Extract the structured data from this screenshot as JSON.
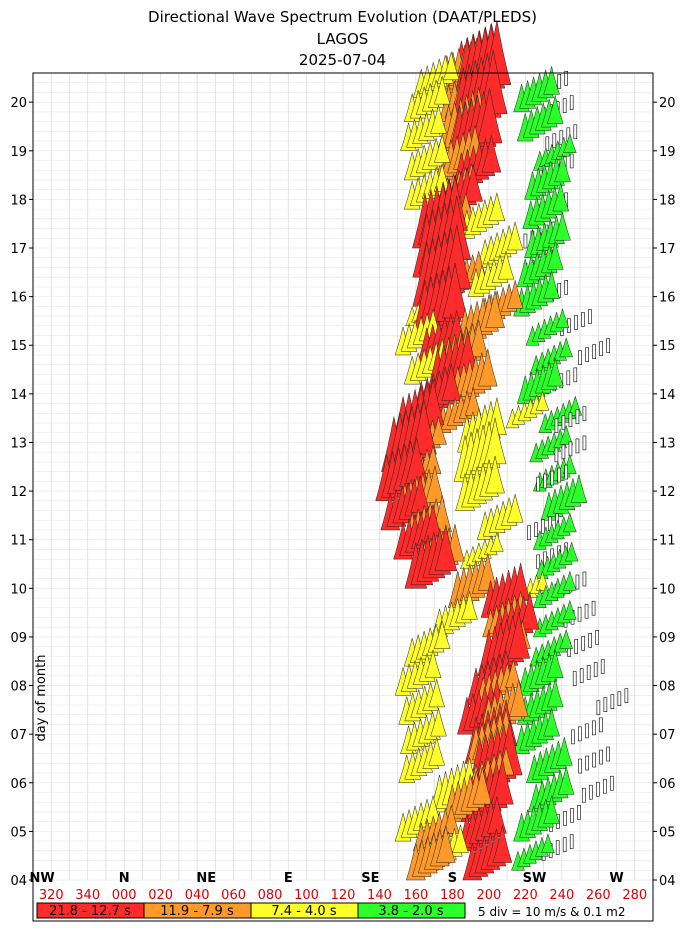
{
  "chart_data": {
    "type": "directional-spectrum-stack",
    "title": "Directional Wave Spectrum Evolution (DAAT/PLEDS)",
    "subtitle_location": "LAGOS",
    "subtitle_date": "2025-07-04",
    "ylabel": "day of month",
    "y_ticks": [
      "04",
      "05",
      "06",
      "07",
      "08",
      "09",
      "10",
      "11",
      "12",
      "13",
      "14",
      "15",
      "16",
      "17",
      "18",
      "19",
      "20"
    ],
    "ylim": [
      4,
      20.6
    ],
    "xlim": [
      310,
      290
    ],
    "direction_ticks": [
      "320",
      "340",
      "000",
      "020",
      "040",
      "060",
      "080",
      "100",
      "120",
      "140",
      "160",
      "180",
      "200",
      "220",
      "240",
      "260",
      "280"
    ],
    "compass_labels": [
      {
        "label": "NW",
        "dir": 315
      },
      {
        "label": "N",
        "dir": 0
      },
      {
        "label": "NE",
        "dir": 45
      },
      {
        "label": "E",
        "dir": 90
      },
      {
        "label": "SE",
        "dir": 135
      },
      {
        "label": "S",
        "dir": 180
      },
      {
        "label": "SW",
        "dir": 225
      },
      {
        "label": "W",
        "dir": 270
      }
    ],
    "legend": [
      {
        "label": "21.8 - 12.7 s",
        "color": "#ff2a2a"
      },
      {
        "label": "11.9 - 7.9 s",
        "color": "#ff9a2a"
      },
      {
        "label": "7.4 - 4.0 s",
        "color": "#ffff2a"
      },
      {
        "label": "3.8 - 2.0 s",
        "color": "#2aff2a"
      }
    ],
    "legend_note": "5 div = 10 m/s & 0.1 m2",
    "wind_color": "#ffffff",
    "series": [
      {
        "name": "21.8 - 12.7 s",
        "color": "#ff2a2a",
        "points": [
          [
            4.0,
            203,
            3
          ],
          [
            4.6,
            200,
            3
          ],
          [
            5.2,
            203,
            4
          ],
          [
            5.8,
            207,
            5
          ],
          [
            6.4,
            205,
            4
          ],
          [
            7.0,
            200,
            3
          ],
          [
            7.6,
            205,
            3
          ],
          [
            8.2,
            212,
            4
          ],
          [
            8.8,
            218,
            3
          ],
          [
            9.4,
            213,
            3
          ],
          [
            10.0,
            172,
            4
          ],
          [
            10.6,
            165,
            3
          ],
          [
            11.2,
            158,
            3
          ],
          [
            11.8,
            156,
            4
          ],
          [
            12.4,
            160,
            5
          ],
          [
            13.0,
            165,
            4
          ],
          [
            13.5,
            175,
            3
          ],
          [
            14.0,
            184,
            4
          ],
          [
            14.6,
            178,
            3
          ],
          [
            15.2,
            177,
            5
          ],
          [
            15.8,
            178,
            6
          ],
          [
            16.4,
            178,
            6
          ],
          [
            17.0,
            177,
            5
          ],
          [
            17.6,
            187,
            3
          ],
          [
            18.2,
            197,
            3
          ],
          [
            18.8,
            196,
            5
          ],
          [
            19.4,
            198,
            6
          ],
          [
            20.0,
            200,
            6
          ],
          [
            20.5,
            197,
            3
          ]
        ]
      },
      {
        "name": "11.9 - 7.9 s",
        "color": "#ff9a2a",
        "points": [
          [
            4.0,
            172,
            3
          ],
          [
            4.6,
            175,
            2
          ],
          [
            5.2,
            192,
            3
          ],
          [
            5.8,
            205,
            2
          ],
          [
            6.4,
            205,
            3
          ],
          [
            7.0,
            212,
            3
          ],
          [
            7.6,
            209,
            2
          ],
          [
            8.4,
            214,
            2
          ],
          [
            9.0,
            213,
            2
          ],
          [
            9.6,
            195,
            3
          ],
          [
            10.2,
            177,
            3
          ],
          [
            10.8,
            170,
            3
          ],
          [
            11.4,
            166,
            3
          ],
          [
            12.0,
            165,
            2
          ],
          [
            12.6,
            168,
            2
          ],
          [
            13.2,
            187,
            2
          ],
          [
            13.8,
            195,
            3
          ],
          [
            14.4,
            190,
            3
          ],
          [
            15.0,
            199,
            3
          ],
          [
            15.4,
            210,
            2
          ],
          [
            16.0,
            190,
            2
          ],
          [
            16.6,
            180,
            2
          ],
          [
            17.2,
            183,
            2
          ],
          [
            17.8,
            186,
            2
          ],
          [
            18.4,
            188,
            3
          ],
          [
            19.0,
            190,
            4
          ],
          [
            19.6,
            190,
            3
          ],
          [
            20.2,
            189,
            3
          ]
        ]
      },
      {
        "name": "7.4 - 4.0 s",
        "color": "#ffff2a",
        "points": [
          [
            4.2,
            180,
            2
          ],
          [
            4.8,
            165,
            2
          ],
          [
            5.4,
            185,
            3
          ],
          [
            6.0,
            167,
            2
          ],
          [
            6.6,
            168,
            2
          ],
          [
            7.2,
            167,
            2
          ],
          [
            7.8,
            165,
            2
          ],
          [
            8.4,
            170,
            2
          ],
          [
            9.0,
            185,
            2
          ],
          [
            9.6,
            225,
            1
          ],
          [
            10.4,
            200,
            1
          ],
          [
            11.0,
            210,
            2
          ],
          [
            11.6,
            199,
            3
          ],
          [
            12.2,
            199,
            4
          ],
          [
            12.8,
            200,
            3
          ],
          [
            13.3,
            225,
            1
          ],
          [
            14.2,
            170,
            2
          ],
          [
            14.8,
            165,
            2
          ],
          [
            15.4,
            170,
            1
          ],
          [
            16.0,
            205,
            2
          ],
          [
            16.6,
            210,
            2
          ],
          [
            17.2,
            200,
            2
          ],
          [
            17.8,
            170,
            2
          ],
          [
            18.4,
            170,
            2
          ],
          [
            19.0,
            168,
            2
          ],
          [
            19.6,
            170,
            2
          ],
          [
            20.1,
            175,
            2
          ]
        ]
      },
      {
        "name": "3.8 - 2.0 s",
        "color": "#2aff2a",
        "points": [
          [
            4.2,
            228,
            1
          ],
          [
            4.8,
            230,
            2
          ],
          [
            5.4,
            238,
            2
          ],
          [
            6.0,
            237,
            2
          ],
          [
            6.6,
            230,
            2
          ],
          [
            7.2,
            232,
            2
          ],
          [
            7.8,
            232,
            2
          ],
          [
            8.4,
            238,
            1
          ],
          [
            9.0,
            240,
            1
          ],
          [
            9.6,
            240,
            1
          ],
          [
            10.2,
            241,
            1
          ],
          [
            10.8,
            240,
            1
          ],
          [
            11.4,
            245,
            2
          ],
          [
            12.0,
            240,
            1
          ],
          [
            12.6,
            238,
            1
          ],
          [
            13.2,
            243,
            1
          ],
          [
            13.8,
            232,
            2
          ],
          [
            14.4,
            238,
            1
          ],
          [
            15.0,
            236,
            1
          ],
          [
            15.6,
            230,
            2
          ],
          [
            16.2,
            232,
            2
          ],
          [
            16.8,
            236,
            2
          ],
          [
            17.4,
            235,
            2
          ],
          [
            18.0,
            236,
            2
          ],
          [
            18.6,
            240,
            1
          ],
          [
            19.2,
            232,
            2
          ],
          [
            19.8,
            230,
            2
          ]
        ]
      },
      {
        "name": "",
        "color": "#ffffff",
        "points": [
          [
            4.4,
            238,
            1
          ],
          [
            5.0,
            242,
            1
          ],
          [
            5.6,
            260,
            1
          ],
          [
            6.2,
            258,
            1
          ],
          [
            6.8,
            254,
            1
          ],
          [
            7.4,
            268,
            1
          ],
          [
            8.0,
            255,
            1
          ],
          [
            8.6,
            252,
            1
          ],
          [
            9.2,
            250,
            1
          ],
          [
            9.8,
            245,
            1
          ],
          [
            10.4,
            235,
            1
          ],
          [
            11.0,
            230,
            1
          ],
          [
            12.0,
            235,
            1
          ],
          [
            12.6,
            245,
            1
          ],
          [
            13.2,
            245,
            1
          ],
          [
            14.0,
            240,
            1
          ],
          [
            14.6,
            258,
            1
          ],
          [
            15.2,
            248,
            1
          ],
          [
            15.8,
            235,
            1
          ],
          [
            16.4,
            228,
            1
          ],
          [
            17.0,
            228,
            1
          ],
          [
            17.6,
            235,
            1
          ],
          [
            18.4,
            238,
            1
          ],
          [
            19.0,
            240,
            1
          ],
          [
            19.6,
            238,
            1
          ],
          [
            20.1,
            235,
            1
          ]
        ]
      }
    ]
  }
}
